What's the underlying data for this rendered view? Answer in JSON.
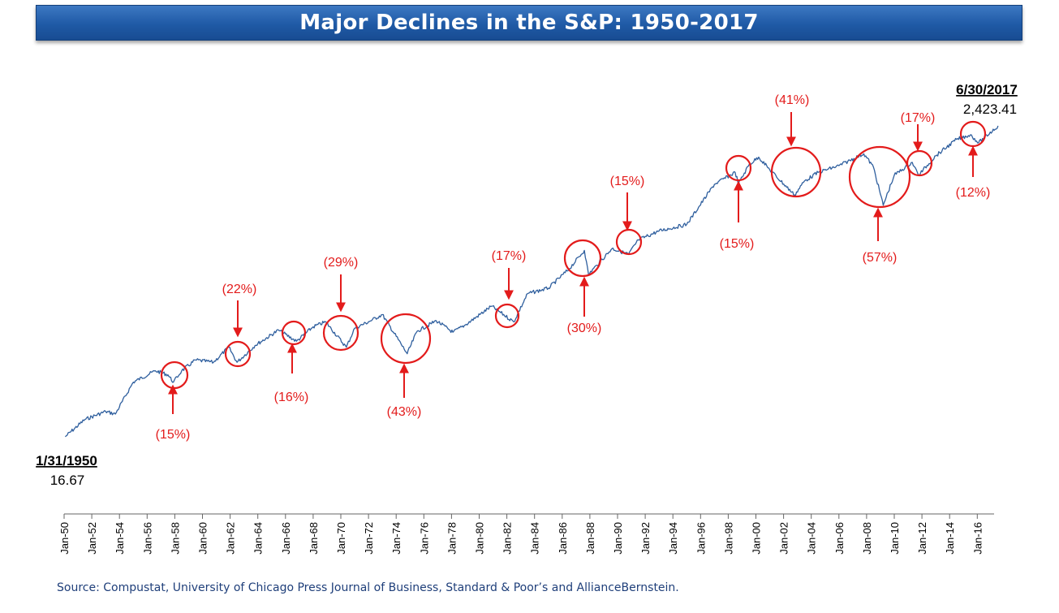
{
  "title": "Major Declines in the S&P: 1950-2017",
  "source": "Source: Compustat, University of Chicago Press Journal of Business, Standard & Poor’s and AllianceBernstein.",
  "colors": {
    "line": "#2f5f9e",
    "annotation": "#e31b1b",
    "title_bar": "#1f5aa6",
    "axis": "#666666"
  },
  "chart_data": {
    "type": "line",
    "title": "Major Declines in the S&P: 1950-2017",
    "y_scale": "log",
    "x_ticks": [
      "Jan-50",
      "Jan-52",
      "Jan-54",
      "Jan-56",
      "Jan-58",
      "Jan-60",
      "Jan-62",
      "Jan-64",
      "Jan-66",
      "Jan-68",
      "Jan-70",
      "Jan-72",
      "Jan-74",
      "Jan-76",
      "Jan-78",
      "Jan-80",
      "Jan-82",
      "Jan-84",
      "Jan-86",
      "Jan-88",
      "Jan-90",
      "Jan-92",
      "Jan-94",
      "Jan-96",
      "Jan-98",
      "Jan-00",
      "Jan-02",
      "Jan-04",
      "Jan-06",
      "Jan-08",
      "Jan-10",
      "Jan-12",
      "Jan-14",
      "Jan-16"
    ],
    "start": {
      "date": "1/31/1950",
      "value": "16.67"
    },
    "end": {
      "date": "6/30/2017",
      "value": "2,423.41"
    },
    "series": [
      {
        "x": [
          1950.08,
          1951.5,
          1953.0,
          1953.7,
          1955.0,
          1956.6,
          1957.5,
          1957.9,
          1958.5,
          1959.5,
          1960.8,
          1961.9,
          1962.5,
          1963.8,
          1965.5,
          1966.8,
          1968.0,
          1968.9,
          1970.4,
          1971.0,
          1972.0,
          1973.0,
          1974.8,
          1975.5,
          1976.9,
          1978.1,
          1979.0,
          1980.9,
          1982.5,
          1983.5,
          1985.0,
          1986.5,
          1987.6,
          1987.9,
          1988.5,
          1989.6,
          1990.8,
          1991.5,
          1993.0,
          1995.0,
          1997.0,
          1998.5,
          1998.75,
          1999.5,
          2000.2,
          2001.0,
          2002.8,
          2003.5,
          2004.5,
          2006.0,
          2007.8,
          2008.5,
          2009.2,
          2010.0,
          2011.3,
          2011.75,
          2013.0,
          2014.5,
          2015.5,
          2016.1,
          2017.5
        ],
        "y": [
          16.7,
          22,
          25,
          24,
          40,
          48,
          45,
          40,
          48,
          57,
          55,
          70,
          55,
          72,
          92,
          77,
          97,
          105,
          70,
          95,
          105,
          118,
          63,
          90,
          107,
          89,
          100,
          135,
          105,
          165,
          180,
          245,
          330,
          225,
          260,
          340,
          310,
          390,
          450,
          500,
          950,
          1150,
          960,
          1300,
          1470,
          1200,
          800,
          1000,
          1150,
          1280,
          1550,
          1250,
          680,
          1100,
          1350,
          1100,
          1500,
          1950,
          2100,
          1850,
          2423
        ]
      }
    ],
    "declines": [
      "(15%)",
      "(22%)",
      "(16%)",
      "(29%)",
      "(43%)",
      "(17%)",
      "(30%)",
      "(15%)",
      "(15%)",
      "(41%)",
      "(57%)",
      "(17%)",
      "(12%)"
    ]
  }
}
